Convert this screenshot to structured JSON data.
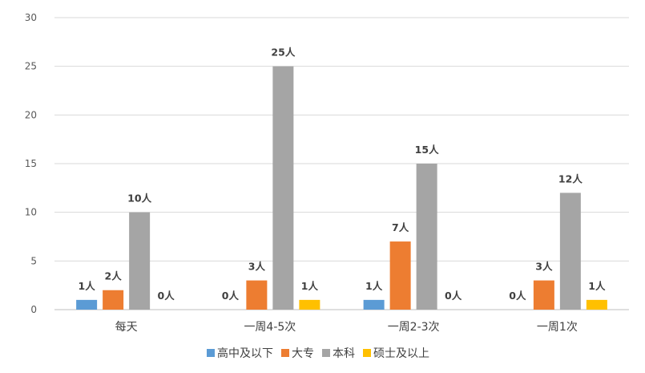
{
  "chart_data": {
    "type": "bar",
    "categories": [
      "每天",
      "一周4-5次",
      "一周2-3次",
      "一周1次"
    ],
    "series": [
      {
        "name": "高中及以下",
        "color": "#5B9BD5",
        "values": [
          1,
          0,
          1,
          0
        ]
      },
      {
        "name": "大专",
        "color": "#ED7D31",
        "values": [
          2,
          3,
          7,
          3
        ]
      },
      {
        "name": "本科",
        "color": "#A5A5A5",
        "values": [
          10,
          25,
          15,
          12
        ]
      },
      {
        "name": "硕士及以上",
        "color": "#FFC000",
        "values": [
          0,
          1,
          0,
          1
        ]
      }
    ],
    "data_label_suffix": "人",
    "ylim": [
      0,
      30
    ],
    "yticks": [
      0,
      5,
      10,
      15,
      20,
      25,
      30
    ],
    "grid": true,
    "legend_position": "bottom"
  }
}
